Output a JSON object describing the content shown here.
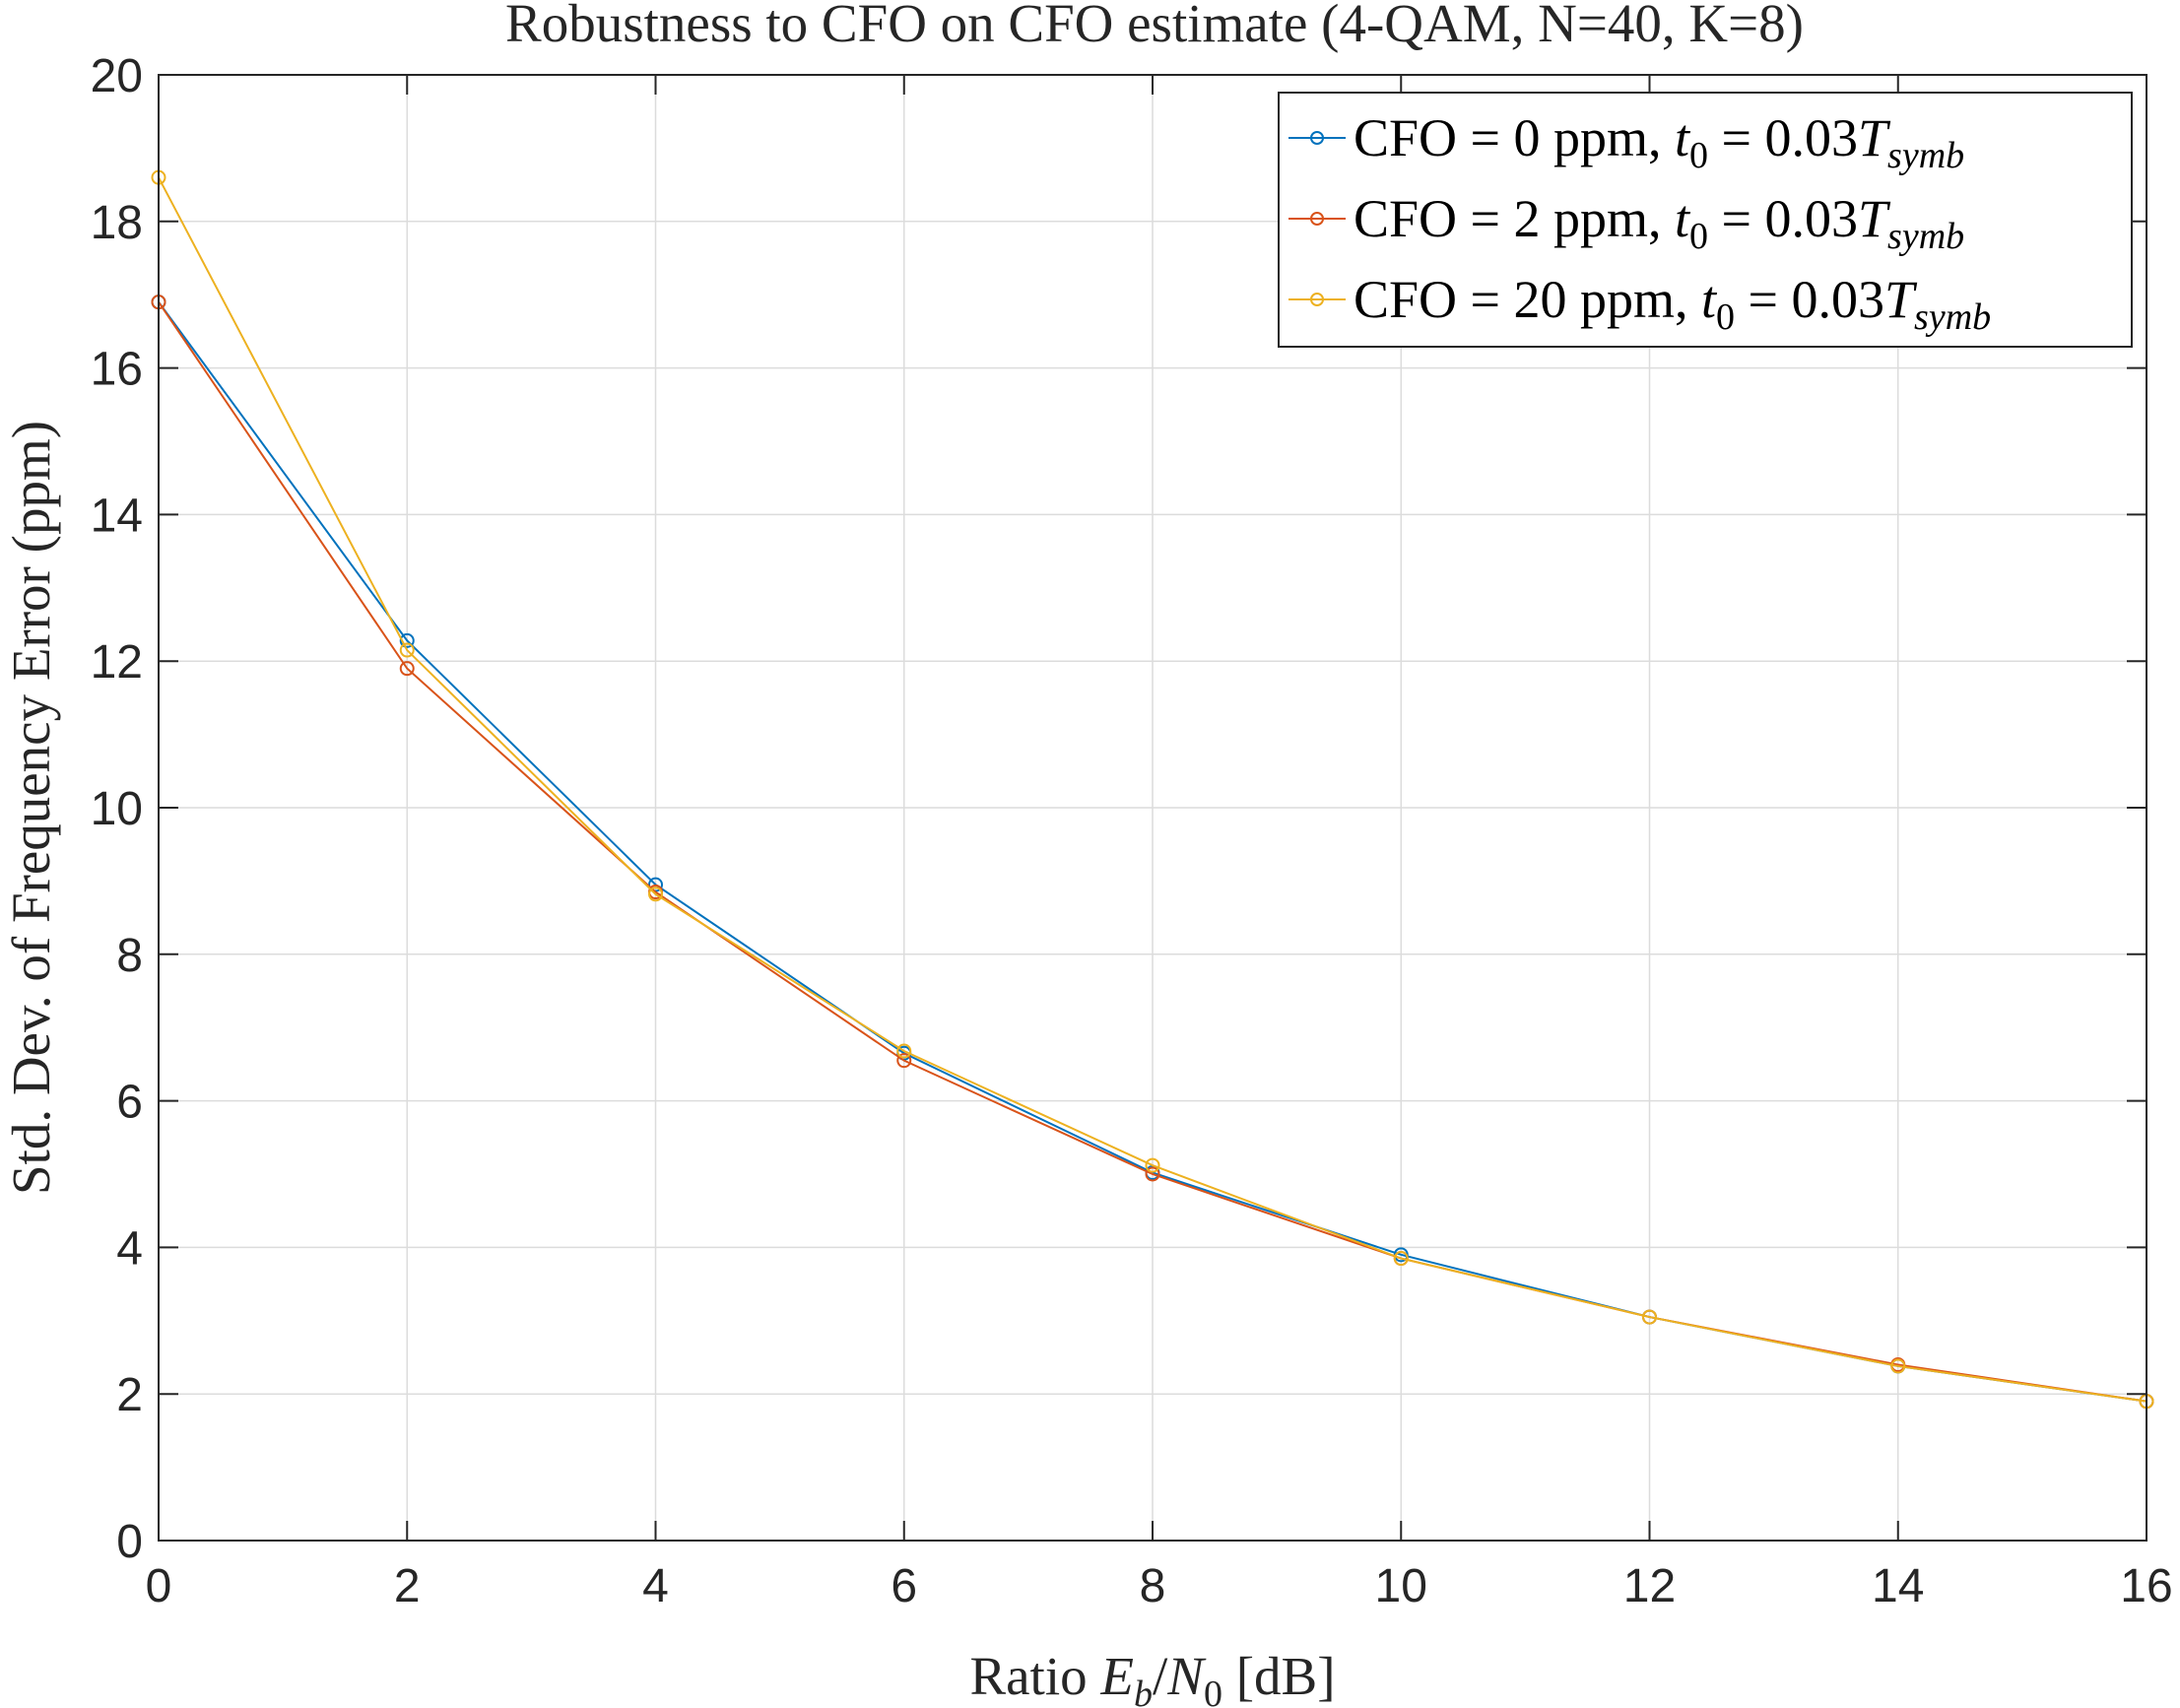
{
  "chart_data": {
    "type": "line",
    "title": "Robustness to CFO on CFO estimate (4-QAM, N=40, K=8)",
    "xlabel": {
      "prefix": "Ratio ",
      "E": "E",
      "b": "b",
      "slash": "/",
      "N": "N",
      "zero": "0",
      "suffix": " [dB]"
    },
    "ylabel": "Std. Dev. of Frequency Error (ppm)",
    "xlim": [
      0,
      16
    ],
    "ylim": [
      0,
      20
    ],
    "xticks": [
      0,
      2,
      4,
      6,
      8,
      10,
      12,
      14,
      16
    ],
    "yticks": [
      0,
      2,
      4,
      6,
      8,
      10,
      12,
      14,
      16,
      18,
      20
    ],
    "grid": true,
    "legend_position": "top-right",
    "x": [
      0,
      2,
      4,
      6,
      8,
      10,
      12,
      14,
      16
    ],
    "series": [
      {
        "legend": {
          "prefix": "CFO = 0 ppm, ",
          "t": "t",
          "zero": "0",
          "eq": " = 0.03",
          "T": "T",
          "sub": "symb"
        },
        "color": "#0072BD",
        "values": [
          16.9,
          12.28,
          8.95,
          6.65,
          5.02,
          3.9,
          3.05,
          2.38,
          1.9
        ]
      },
      {
        "legend": {
          "prefix": "CFO = 2 ppm, ",
          "t": "t",
          "zero": "0",
          "eq": " = 0.03",
          "T": "T",
          "sub": "symb"
        },
        "color": "#D95319",
        "values": [
          16.9,
          11.9,
          8.85,
          6.55,
          5.0,
          3.85,
          3.05,
          2.4,
          1.9
        ]
      },
      {
        "legend": {
          "prefix": "CFO = 20 ppm, ",
          "t": "t",
          "zero": "0",
          "eq": " = 0.03",
          "T": "T",
          "sub": "symb"
        },
        "color": "#EDB120",
        "values": [
          18.6,
          12.15,
          8.82,
          6.68,
          5.12,
          3.85,
          3.05,
          2.38,
          1.9
        ]
      }
    ]
  }
}
